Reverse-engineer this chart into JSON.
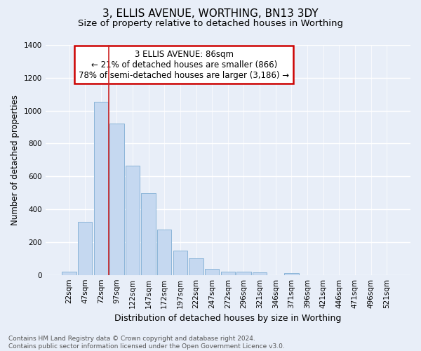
{
  "title": "3, ELLIS AVENUE, WORTHING, BN13 3DY",
  "subtitle": "Size of property relative to detached houses in Worthing",
  "xlabel": "Distribution of detached houses by size in Worthing",
  "ylabel": "Number of detached properties",
  "categories": [
    "22sqm",
    "47sqm",
    "72sqm",
    "97sqm",
    "122sqm",
    "147sqm",
    "172sqm",
    "197sqm",
    "222sqm",
    "247sqm",
    "272sqm",
    "296sqm",
    "321sqm",
    "346sqm",
    "371sqm",
    "396sqm",
    "421sqm",
    "446sqm",
    "471sqm",
    "496sqm",
    "521sqm"
  ],
  "values": [
    20,
    325,
    1055,
    920,
    665,
    500,
    278,
    150,
    100,
    35,
    22,
    22,
    15,
    0,
    12,
    0,
    0,
    0,
    0,
    0,
    0
  ],
  "bar_color": "#c5d8f0",
  "bar_edge_color": "#8ab4d8",
  "vline_x": 3.0,
  "vline_color": "#cc2222",
  "annotation_text": "3 ELLIS AVENUE: 86sqm\n← 21% of detached houses are smaller (866)\n78% of semi-detached houses are larger (3,186) →",
  "annotation_box_color": "white",
  "annotation_box_edge_color": "#cc0000",
  "ylim": [
    0,
    1400
  ],
  "yticks": [
    0,
    200,
    400,
    600,
    800,
    1000,
    1200,
    1400
  ],
  "footnote": "Contains HM Land Registry data © Crown copyright and database right 2024.\nContains public sector information licensed under the Open Government Licence v3.0.",
  "bg_color": "#e8eef8",
  "grid_color": "white",
  "title_fontsize": 11,
  "subtitle_fontsize": 9.5,
  "xlabel_fontsize": 9,
  "ylabel_fontsize": 8.5,
  "footnote_fontsize": 6.5,
  "tick_fontsize": 7.5,
  "annot_fontsize": 8.5
}
